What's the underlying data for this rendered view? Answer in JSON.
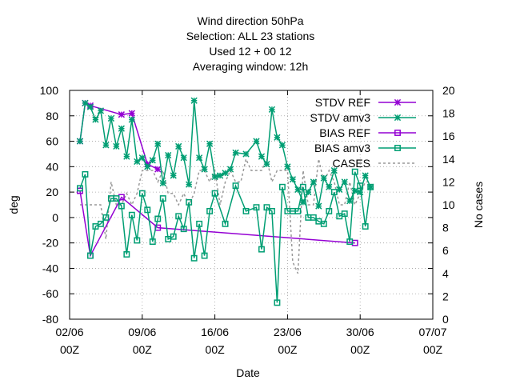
{
  "chart_data": {
    "type": "line",
    "title_lines": [
      "Wind direction 50hPa",
      "Selection: ALL      23 stations",
      "Used  12  + 00 12",
      "Averaging window: 12h"
    ],
    "xlabel": "Date",
    "ylabel": "deg",
    "y2label": "No cases",
    "xlim": [
      0,
      35
    ],
    "ylim": [
      -80,
      100
    ],
    "y2lim": [
      0,
      20
    ],
    "x_ticks": [
      {
        "x": 0,
        "line1": "02/06",
        "line2": "00Z"
      },
      {
        "x": 7,
        "line1": "09/06",
        "line2": "00Z"
      },
      {
        "x": 14,
        "line1": "16/06",
        "line2": "00Z"
      },
      {
        "x": 21,
        "line1": "23/06",
        "line2": "00Z"
      },
      {
        "x": 28,
        "line1": "30/06",
        "line2": "00Z"
      },
      {
        "x": 35,
        "line1": "07/07",
        "line2": "00Z"
      }
    ],
    "y_ticks": [
      -80,
      -60,
      -40,
      -20,
      0,
      20,
      40,
      60,
      80,
      100
    ],
    "y2_ticks": [
      0,
      2,
      4,
      6,
      8,
      10,
      12,
      14,
      16,
      18,
      20
    ],
    "grid": true,
    "legend_position": "top-right",
    "series": [
      {
        "name": "STDV REF",
        "color": "#9400d3",
        "marker": "star",
        "dash": false,
        "x": [
          1,
          1.5,
          2,
          5,
          6,
          7.5,
          8.5
        ],
        "y": [
          60,
          90,
          88,
          81,
          82,
          42,
          38
        ]
      },
      {
        "name": "STDV amv3",
        "color": "#009e73",
        "marker": "star",
        "dash": false,
        "x": [
          1,
          1.5,
          2,
          2.5,
          3,
          3.5,
          4,
          4.5,
          5,
          5.5,
          6,
          6.5,
          7,
          7.5,
          8,
          8.5,
          9,
          9.5,
          10,
          10.5,
          11,
          11.5,
          12,
          12.5,
          13,
          13.5,
          14,
          14.5,
          15,
          15.5,
          16,
          17,
          18,
          18.5,
          19,
          19.5,
          20,
          20.5,
          21,
          21.5,
          22,
          22.5,
          23,
          23.5,
          24,
          24.5,
          25,
          25.5,
          26,
          26.5,
          27,
          27.5,
          28,
          28.5,
          29
        ],
        "y": [
          60,
          90,
          87,
          77,
          84,
          57,
          78,
          56,
          70,
          48,
          77,
          44,
          47,
          40,
          45,
          58,
          27,
          49,
          33,
          56,
          47,
          26,
          92,
          47,
          38,
          58,
          32,
          33,
          35,
          38,
          51,
          50,
          60,
          48,
          42,
          85,
          63,
          57,
          40,
          30,
          22,
          12,
          20,
          28,
          9,
          31,
          24,
          37,
          22,
          28,
          13,
          21,
          20,
          33,
          24
        ]
      },
      {
        "name": "BIAS REF",
        "color": "#9400d3",
        "marker": "square",
        "dash": false,
        "x": [
          1,
          2,
          5,
          8.5,
          27.5
        ],
        "y": [
          21,
          -30,
          16,
          -8,
          -20
        ]
      },
      {
        "name": "BIAS amv3",
        "color": "#009e73",
        "marker": "square",
        "dash": false,
        "x": [
          1,
          1.5,
          2,
          2.5,
          3,
          3.5,
          4,
          4.5,
          5,
          5.5,
          6,
          6.5,
          7,
          7.5,
          8,
          8.5,
          9,
          9.5,
          10,
          10.5,
          11,
          11.5,
          12,
          12.5,
          13,
          13.5,
          14,
          15,
          16,
          17,
          18,
          18.5,
          19,
          19.5,
          20,
          20.5,
          21,
          21.5,
          22,
          22.5,
          23,
          23.5,
          24,
          24.5,
          25,
          25.5,
          26,
          26.5,
          27,
          27.5,
          28,
          28.5,
          29
        ],
        "y": [
          23,
          34,
          -30,
          -7,
          -5,
          0,
          15,
          15,
          9,
          -29,
          2,
          -18,
          19,
          6,
          -19,
          -1,
          15,
          -17,
          -15,
          1,
          -9,
          12,
          -32,
          -5,
          -30,
          5,
          19,
          -5,
          25,
          5,
          8,
          -25,
          8,
          5,
          -67,
          24,
          5,
          5,
          5,
          24,
          0,
          0,
          -3,
          -5,
          5,
          20,
          1,
          3,
          -19,
          36,
          25,
          -7,
          24
        ]
      },
      {
        "name": "CASES",
        "color": "#999999",
        "marker": "none",
        "dash": true,
        "axis": "y2",
        "x": [
          1,
          1.5,
          2,
          2.5,
          3,
          3.5,
          4,
          4.5,
          5,
          5.5,
          6,
          6.5,
          7,
          7.5,
          8,
          8.5,
          9,
          9.5,
          10,
          10.5,
          11,
          11.5,
          12,
          12.5,
          13,
          13.5,
          14,
          14.5,
          15,
          15.5,
          16,
          16.5,
          17,
          17.5,
          18,
          18.5,
          19,
          19.5,
          20,
          20.5,
          21,
          21.5,
          22,
          22.5,
          23,
          23.5,
          24,
          24.5,
          25,
          25.5,
          26,
          26.5,
          27,
          27.5,
          28,
          28.5,
          29
        ],
        "y": [
          10,
          10,
          10,
          10,
          10,
          7,
          12,
          10,
          10,
          11,
          10,
          11,
          13,
          13,
          13,
          12,
          13,
          11,
          11,
          10,
          11,
          10,
          11,
          13,
          13,
          12,
          13,
          10,
          12,
          13,
          12,
          12,
          14,
          13,
          13,
          13,
          14,
          12,
          13,
          13,
          13,
          5,
          4,
          13,
          10,
          10,
          14,
          12,
          13,
          12,
          10,
          10,
          12,
          10,
          11,
          12,
          12
        ]
      }
    ]
  }
}
